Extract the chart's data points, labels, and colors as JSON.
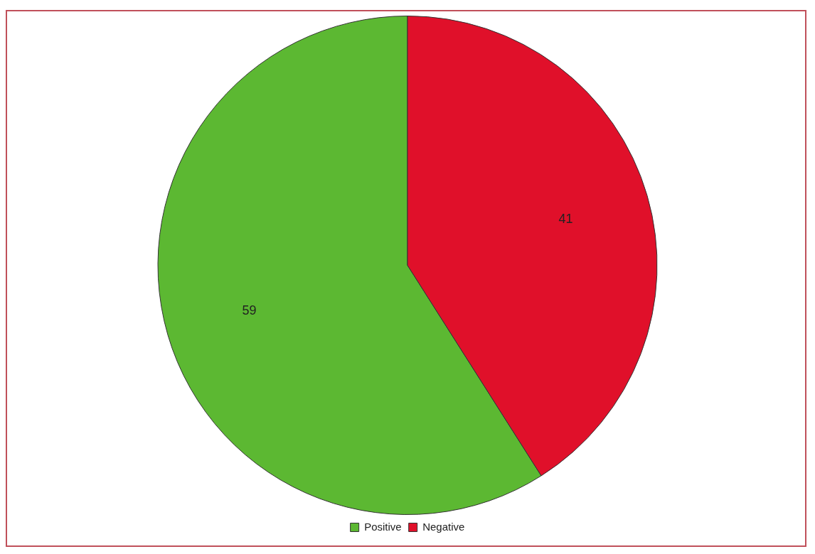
{
  "chart_data": {
    "type": "pie",
    "categories": [
      "Positive",
      "Negative"
    ],
    "values": [
      59,
      41
    ],
    "colors": [
      "#5cb832",
      "#e0102a"
    ],
    "data_labels": true,
    "legend": "bottom"
  }
}
